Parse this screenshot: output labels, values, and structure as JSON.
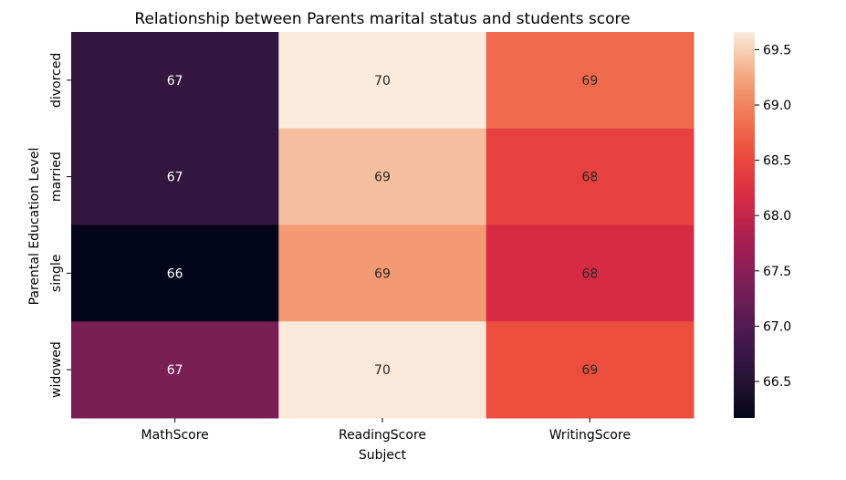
{
  "chart_data": {
    "type": "heatmap",
    "title": "Relationship between Parents marital status and students score",
    "xlabel": "Subject",
    "ylabel": "Parental Education Level",
    "x_categories": [
      "MathScore",
      "ReadingScore",
      "WritingScore"
    ],
    "y_categories": [
      "divorced",
      "married",
      "single",
      "widowed"
    ],
    "values": [
      [
        66.69,
        69.66,
        68.8
      ],
      [
        66.66,
        69.39,
        68.42
      ],
      [
        66.17,
        69.16,
        68.17
      ],
      [
        67.37,
        69.65,
        68.56
      ]
    ],
    "annotations": [
      [
        "67",
        "70",
        "69"
      ],
      [
        "67",
        "69",
        "68"
      ],
      [
        "66",
        "69",
        "68"
      ],
      [
        "67",
        "70",
        "69"
      ]
    ],
    "colorbar": {
      "range": [
        66.17,
        69.66
      ],
      "ticks": [
        66.5,
        67.0,
        67.5,
        68.0,
        68.5,
        69.0,
        69.5
      ],
      "tick_labels": [
        "66.5",
        "67.0",
        "67.5",
        "68.0",
        "68.5",
        "69.0",
        "69.5"
      ],
      "colormap": "rocket"
    }
  }
}
